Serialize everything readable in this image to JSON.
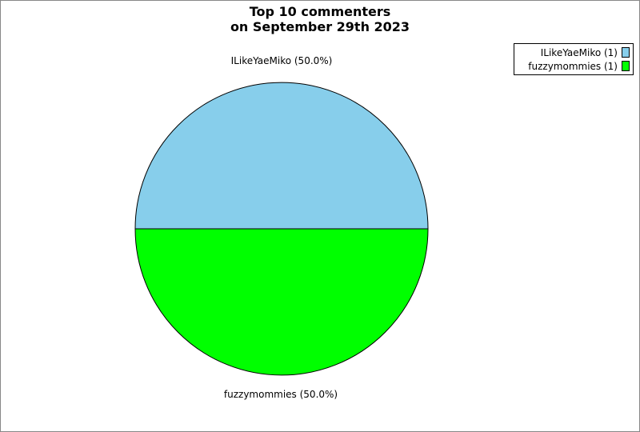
{
  "figure": {
    "title_line1": "Top 10 commenters",
    "title_line2": "on September 29th 2023",
    "background_color": "#ffffff",
    "frame_border_color": "#888888"
  },
  "chart_data": {
    "type": "pie",
    "title": "Top 10 commenters on September 29th 2023",
    "start_angle_deg": 0,
    "direction": "counterclockwise",
    "edge_color": "#000000",
    "legend_position": "upper-right",
    "slices": [
      {
        "name": "ILikeYaeMiko",
        "count": 1,
        "percent": 50.0,
        "color": "#87CEEB",
        "slice_label": "ILikeYaeMiko (50.0%)",
        "legend_label": "ILikeYaeMiko (1)"
      },
      {
        "name": "fuzzymommies",
        "count": 1,
        "percent": 50.0,
        "color": "#00FF00",
        "slice_label": "fuzzymommies (50.0%)",
        "legend_label": "fuzzymommies (1)"
      }
    ]
  }
}
